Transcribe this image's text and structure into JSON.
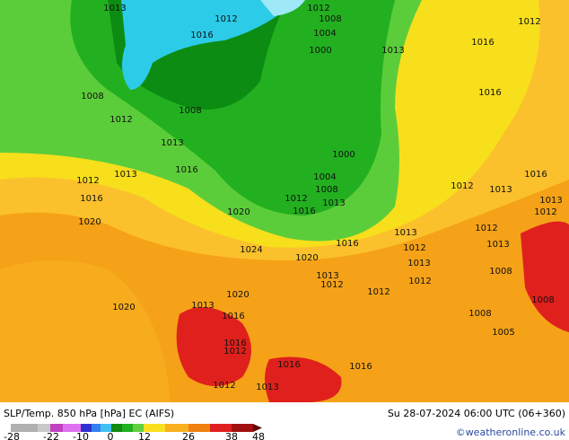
{
  "map": {
    "isobar_labels": [
      "1013",
      "1012",
      "1016",
      "1012",
      "1008",
      "1004",
      "1000",
      "1013",
      "1012",
      "1016",
      "1008",
      "1008",
      "1012",
      "1016",
      "1013",
      "1000",
      "1012",
      "1013",
      "1016",
      "1004",
      "1008",
      "1016",
      "1012",
      "1013",
      "1013",
      "1016",
      "1012",
      "1013",
      "1012",
      "1020",
      "1016",
      "1020",
      "1012",
      "1013",
      "1013",
      "1012",
      "1016",
      "1024",
      "1020",
      "1013",
      "1013",
      "1012",
      "1012",
      "1008",
      "1012",
      "1020",
      "1020",
      "1013",
      "1016",
      "1008",
      "1008",
      "1005",
      "1016",
      "1012",
      "1016",
      "1016",
      "1012",
      "1013"
    ]
  },
  "footer": {
    "title": "SLP/Temp. 850 hPa [hPa] EC (AIFS)",
    "datetime": "Su 28-07-2024 06:00 UTC (06+360)",
    "credit": "©weatheronline.co.uk"
  },
  "colorbar": {
    "ticks": [
      "-28",
      "-22",
      "-10",
      "0",
      "12",
      "26",
      "38",
      "48"
    ]
  }
}
